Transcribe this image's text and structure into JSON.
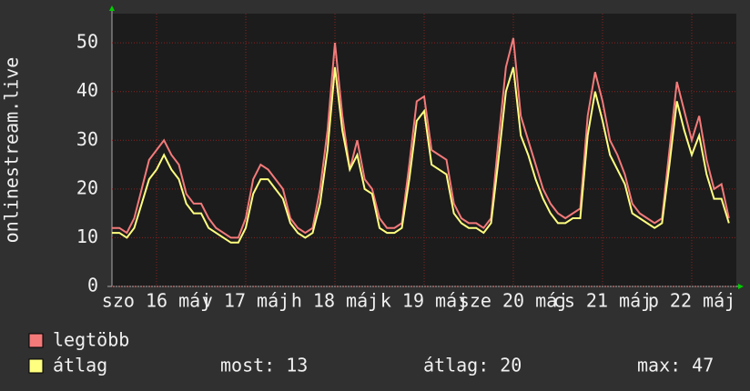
{
  "chart_data": {
    "type": "line",
    "ylabel": "onlinestream.live",
    "x": [
      0,
      2,
      4,
      6,
      8,
      10,
      12,
      14,
      16,
      18,
      20,
      22,
      24,
      26,
      28,
      30,
      32,
      34,
      36,
      38,
      40,
      42,
      44,
      46,
      48,
      50,
      52,
      54,
      56,
      58,
      60,
      62,
      64,
      66,
      68,
      70,
      72,
      74,
      76,
      78,
      80,
      82,
      84,
      86,
      88,
      90,
      92,
      94,
      96,
      98,
      100,
      102,
      104,
      106,
      108,
      110,
      112,
      114,
      116,
      118,
      120,
      122,
      124,
      126,
      128,
      130,
      132,
      134,
      136,
      138,
      140,
      142,
      144,
      146,
      148,
      150,
      152,
      154,
      156,
      158,
      160,
      162,
      164,
      166
    ],
    "xlim": [
      0,
      168
    ],
    "xticks": [
      {
        "value": 12,
        "label": "szo 16 máj"
      },
      {
        "value": 36,
        "label": "v 17 máj"
      },
      {
        "value": 60,
        "label": "h 18 máj"
      },
      {
        "value": 84,
        "label": "k 19 máj"
      },
      {
        "value": 108,
        "label": "sze 20 máj"
      },
      {
        "value": 132,
        "label": "cs 21 máj"
      },
      {
        "value": 156,
        "label": "p 22 máj"
      }
    ],
    "ylim": [
      0,
      56
    ],
    "yticks": [
      0,
      10,
      20,
      30,
      40,
      50
    ],
    "grid": true,
    "series": [
      {
        "name": "legtöbb",
        "color": "#f47a7a",
        "values": [
          12,
          12,
          11,
          14,
          20,
          26,
          28,
          30,
          27,
          25,
          19,
          17,
          17,
          14,
          12,
          11,
          10,
          10,
          14,
          22,
          25,
          24,
          22,
          20,
          14,
          12,
          11,
          12,
          20,
          32,
          50,
          35,
          24,
          30,
          22,
          20,
          14,
          12,
          12,
          13,
          25,
          38,
          39,
          28,
          27,
          26,
          17,
          14,
          13,
          13,
          12,
          14,
          30,
          45,
          51,
          35,
          30,
          25,
          20,
          17,
          15,
          14,
          15,
          16,
          35,
          44,
          38,
          30,
          27,
          23,
          17,
          15,
          14,
          13,
          14,
          28,
          42,
          36,
          30,
          35,
          26,
          20,
          21,
          14
        ]
      },
      {
        "name": "átlag",
        "color": "#ffff80",
        "values": [
          11,
          11,
          10,
          12,
          17,
          22,
          24,
          27,
          24,
          22,
          17,
          15,
          15,
          12,
          11,
          10,
          9,
          9,
          12,
          19,
          22,
          22,
          20,
          18,
          13,
          11,
          10,
          11,
          17,
          28,
          45,
          32,
          24,
          27,
          20,
          19,
          12,
          11,
          11,
          12,
          22,
          34,
          36,
          25,
          24,
          23,
          15,
          13,
          12,
          12,
          11,
          13,
          26,
          40,
          45,
          31,
          27,
          22,
          18,
          15,
          13,
          13,
          14,
          14,
          31,
          40,
          34,
          27,
          24,
          21,
          15,
          14,
          13,
          12,
          13,
          25,
          38,
          32,
          27,
          31,
          23,
          18,
          18,
          13
        ]
      }
    ],
    "stats": [
      {
        "label": "most:",
        "value": 13
      },
      {
        "label": "átlag:",
        "value": 20
      },
      {
        "label": "max:",
        "value": 47
      }
    ]
  }
}
